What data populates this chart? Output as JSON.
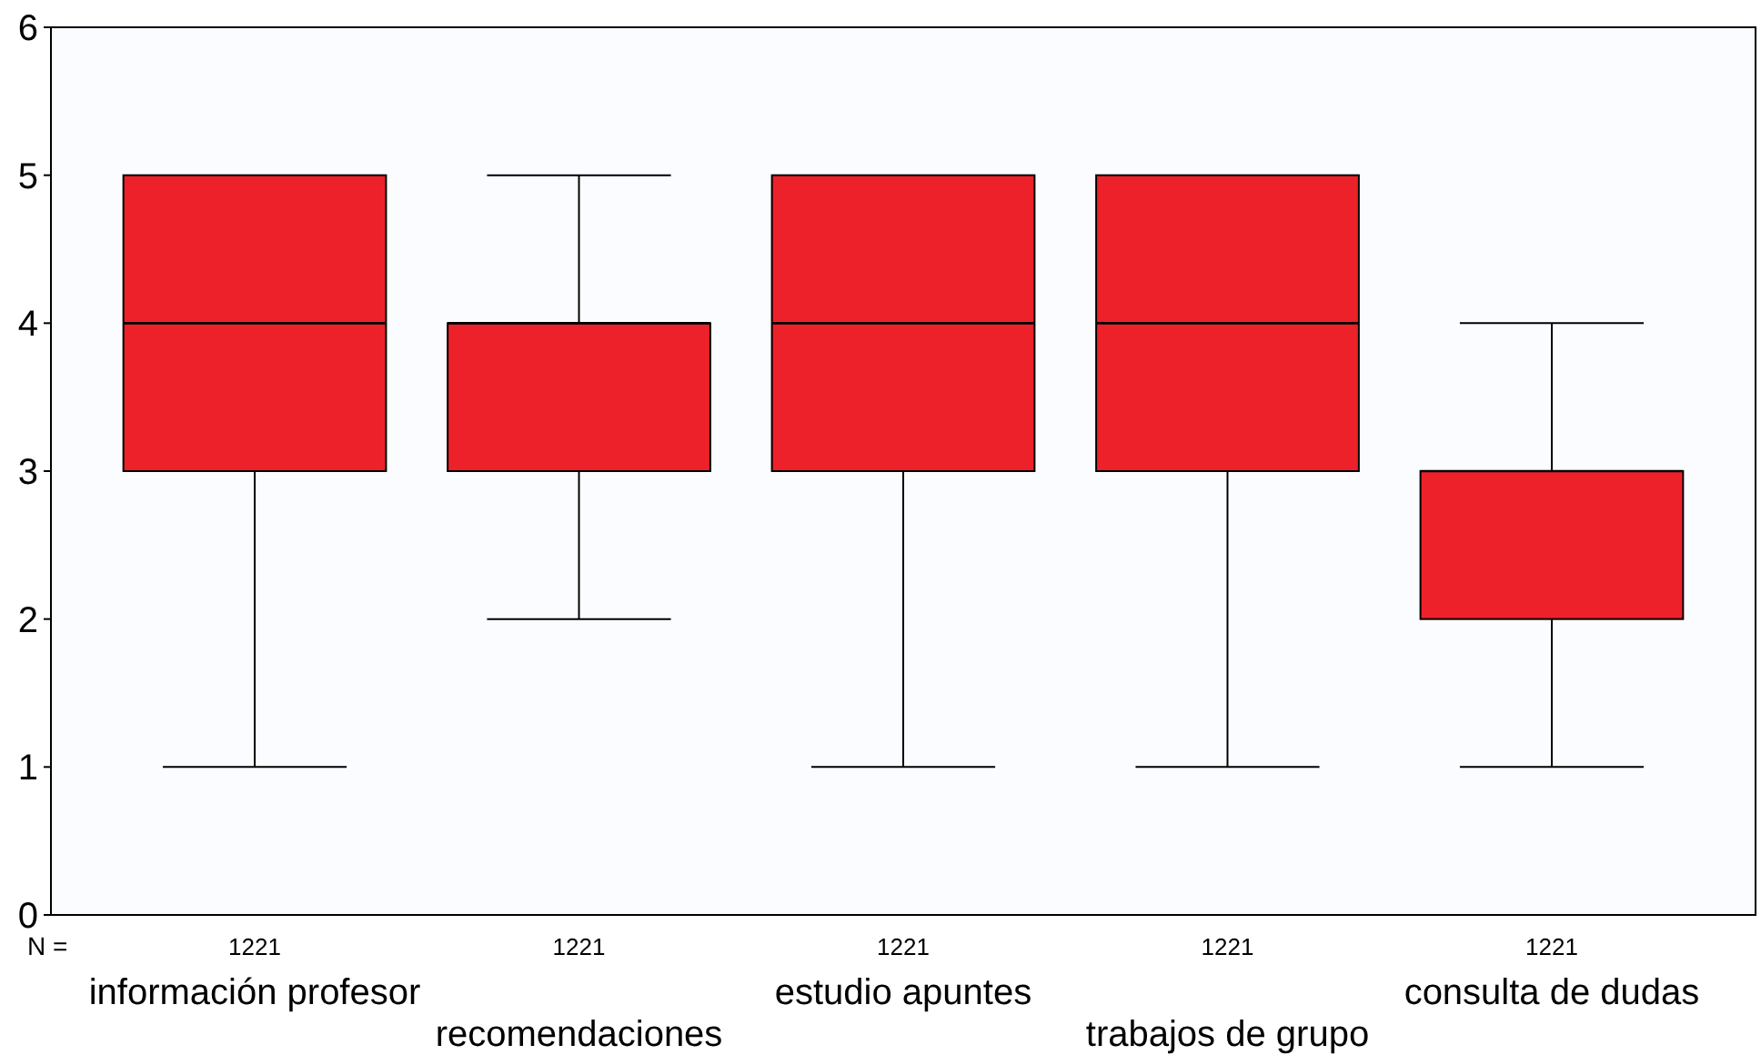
{
  "chart_data": {
    "type": "box",
    "categories": [
      "información profesor",
      "recomendaciones",
      "estudio apuntes",
      "trabajos de grupo",
      "consulta de dudas"
    ],
    "boxes": [
      {
        "low": 1,
        "q1": 3,
        "median": 4,
        "q3": 5,
        "high": 5
      },
      {
        "low": 2,
        "q1": 3,
        "median": 4,
        "q3": 4,
        "high": 5
      },
      {
        "low": 1,
        "q1": 3,
        "median": 4,
        "q3": 5,
        "high": 5
      },
      {
        "low": 1,
        "q1": 3,
        "median": 4,
        "q3": 5,
        "high": 5
      },
      {
        "low": 1,
        "q1": 2,
        "median": 3,
        "q3": 3,
        "high": 4
      }
    ],
    "color": "#ed2129",
    "ylim": [
      0,
      6
    ],
    "yticks": [
      0,
      1,
      2,
      3,
      4,
      5,
      6
    ],
    "annotations": [
      "N =",
      "1221",
      "1221",
      "1221",
      "1221",
      "1221"
    ]
  }
}
